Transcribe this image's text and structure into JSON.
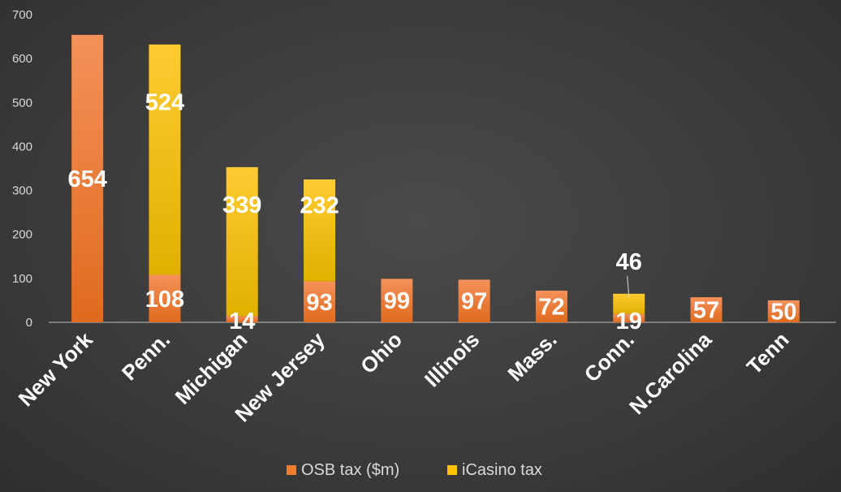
{
  "chart_data": {
    "type": "bar",
    "stacked": true,
    "categories": [
      "New York",
      "Penn.",
      "Michigan",
      "New Jersey",
      "Ohio",
      "Illinois",
      "Mass.",
      "Conn.",
      "N.Carolina",
      "Tenn"
    ],
    "series": [
      {
        "name": "OSB tax ($m)",
        "color": "#ED7D31",
        "values": [
          654,
          108,
          14,
          93,
          99,
          97,
          72,
          19,
          57,
          50
        ]
      },
      {
        "name": "iCasino tax",
        "color": "#FFC000",
        "values": [
          0,
          524,
          339,
          232,
          0,
          0,
          0,
          46,
          0,
          0
        ]
      }
    ],
    "ylim": [
      0,
      700
    ],
    "yticks": [
      0,
      100,
      200,
      300,
      400,
      500,
      600,
      700
    ],
    "grid": false,
    "legend": "bottom-center",
    "title": "",
    "xlabel": "",
    "ylabel": ""
  }
}
